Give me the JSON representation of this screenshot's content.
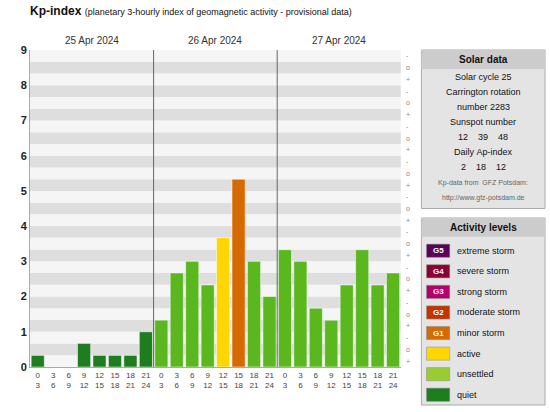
{
  "chart_data": {
    "type": "bar",
    "title": "Kp-index",
    "subtitle": "(planetary 3-hourly index of geomagnetic activity - provisional data)",
    "dates": [
      "25 Apr 2024",
      "26 Apr 2024",
      "27 Apr 2024"
    ],
    "categories": [
      "0\n3",
      "3\n6",
      "6\n9",
      "9\n12",
      "12\n15",
      "15\n18",
      "18\n21",
      "21\n24",
      "0\n3",
      "3\n6",
      "6\n9",
      "9\n12",
      "12\n15",
      "15\n18",
      "18\n21",
      "21\n24",
      "0\n3",
      "3\n6",
      "6\n9",
      "9\n12",
      "12\n15",
      "15\n18",
      "18\n21",
      "21\n24"
    ],
    "values": [
      0.33,
      0.0,
      0.0,
      0.67,
      0.33,
      0.33,
      0.33,
      1.0,
      1.33,
      2.67,
      3.0,
      2.33,
      3.67,
      5.33,
      3.0,
      2.0,
      3.33,
      3.0,
      1.67,
      1.33,
      2.33,
      3.33,
      2.33,
      2.67
    ],
    "colors": [
      "#1e7d1e",
      "#1e7d1e",
      "#1e7d1e",
      "#1e7d1e",
      "#1e7d1e",
      "#1e7d1e",
      "#1e7d1e",
      "#1e7d1e",
      "#5ab81e",
      "#5ab81e",
      "#5ab81e",
      "#5ab81e",
      "#ffd700",
      "#d46a00",
      "#5ab81e",
      "#5ab81e",
      "#5ab81e",
      "#5ab81e",
      "#5ab81e",
      "#5ab81e",
      "#5ab81e",
      "#5ab81e",
      "#5ab81e",
      "#5ab81e"
    ],
    "ylim": [
      0,
      9
    ],
    "yticks": [
      0,
      1,
      2,
      3,
      4,
      5,
      6,
      7,
      8,
      9
    ],
    "grid": false,
    "legend": false,
    "band_labels": [
      "+",
      "o",
      "-"
    ],
    "solar_data": {
      "title": "Solar data",
      "lines": [
        "Solar cycle 25",
        "Carrington rotation",
        "number 2283",
        "Sunspot number",
        "12    39    48",
        "Daily Ap-index",
        "2    18    12"
      ],
      "source_lines": [
        "Kp-data from  GFZ Potsdam:",
        "http://www.gfz-potsdam.de"
      ]
    },
    "activity_levels": {
      "title": "Activity levels",
      "entries": [
        {
          "label": "extreme storm",
          "color": "#5c0057",
          "text_color": "#ffffff",
          "g_label": "G5"
        },
        {
          "label": "severe storm",
          "color": "#8b0033",
          "text_color": "#ffffff",
          "g_label": "G4"
        },
        {
          "label": "strong storm",
          "color": "#b5006b",
          "text_color": "#ffffff",
          "g_label": "G3"
        },
        {
          "label": "moderate storm",
          "color": "#c43400",
          "text_color": "#ffffff",
          "g_label": "G2"
        },
        {
          "label": "minor storm",
          "color": "#d46a00",
          "text_color": "#ffffff",
          "g_label": "G1"
        },
        {
          "label": "active",
          "color": "#ffd700",
          "text_color": "#000000"
        },
        {
          "label": "unsettled",
          "color": "#99cc33",
          "text_color": "#000000"
        },
        {
          "label": "quiet",
          "color": "#1e7d1e",
          "text_color": "#000000"
        }
      ]
    }
  }
}
